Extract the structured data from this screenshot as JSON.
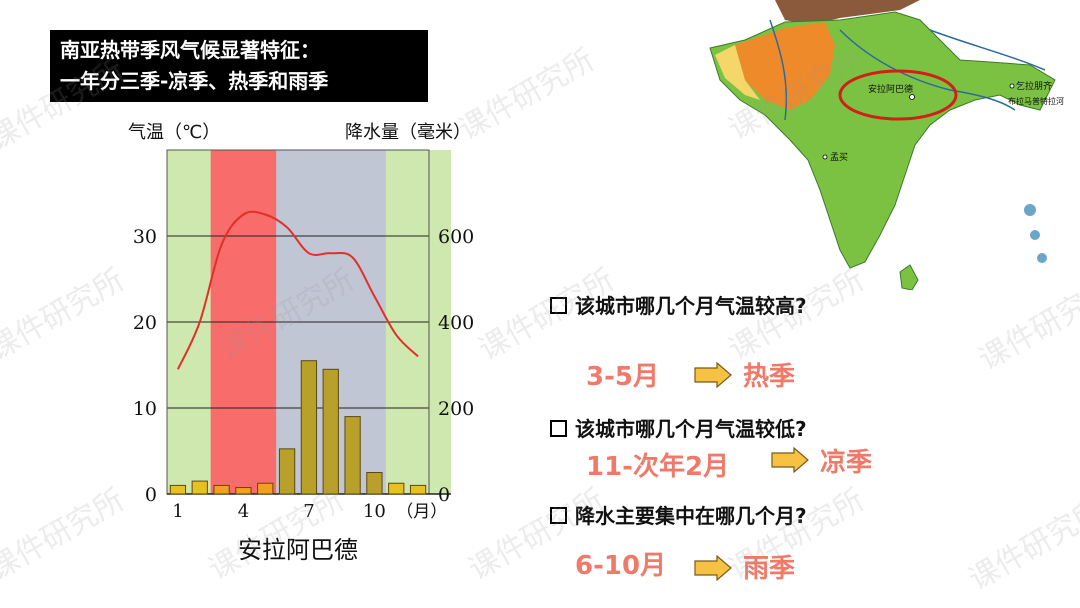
{
  "slide": {
    "title_line1": "南亚热带季风气候显著特征：",
    "title_line2": "一年分三季-凉季、热季和雨季",
    "watermark": "课件研究所"
  },
  "chart_data": {
    "type": "bar",
    "title": "安拉阿巴德",
    "ylabel_left": "气温（℃）",
    "ylabel_right": "降水量（毫米）",
    "xunit": "（月）",
    "months": [
      1,
      2,
      3,
      4,
      5,
      6,
      7,
      8,
      9,
      10,
      11,
      12
    ],
    "x_tick_labels": [
      "1",
      "4",
      "7",
      "10"
    ],
    "temp_ticks": [
      "0",
      "10",
      "20",
      "30"
    ],
    "precip_ticks": [
      "0",
      "200",
      "400",
      "600"
    ],
    "temp_range": [
      0,
      40
    ],
    "precip_range": [
      0,
      800
    ],
    "temperature_c": [
      14.5,
      20,
      29,
      32.5,
      32.5,
      31,
      28,
      28,
      27.5,
      23,
      18.5,
      16
    ],
    "precipitation_mm": [
      20,
      30,
      20,
      15,
      25,
      105,
      310,
      290,
      180,
      50,
      25,
      20
    ],
    "seasons": [
      {
        "name": "凉季",
        "months": [
          11,
          12,
          1,
          2
        ],
        "color": "#cfe8b0"
      },
      {
        "name": "热季",
        "months": [
          3,
          4,
          5
        ],
        "color": "#f86c6c"
      },
      {
        "name": "雨季",
        "months": [
          6,
          7,
          8,
          9,
          10
        ],
        "color": "#c0c6d4"
      }
    ],
    "grid": true
  },
  "questions": [
    {
      "text": "该城市哪几个月气温较高?",
      "answer": "3-5月",
      "season": "热季"
    },
    {
      "text": "该城市哪几个月气温较低?",
      "answer": "11-次年2月",
      "season": "凉季"
    },
    {
      "text": "降水主要集中在哪几个月?",
      "answer": "6-10月",
      "season": "雨季"
    }
  ],
  "map": {
    "label_city": "安拉阿巴德",
    "label_mumbai": "孟买",
    "label_chittagong": "乞拉朋齐",
    "label_river": "布拉马普特拉河"
  },
  "colors": {
    "answer": "#f07a6a",
    "arrow": "#f7c244",
    "bar_normal": "#b8a02a",
    "bar_dry": "#f2a11f",
    "temp_line": "#e0302a"
  }
}
